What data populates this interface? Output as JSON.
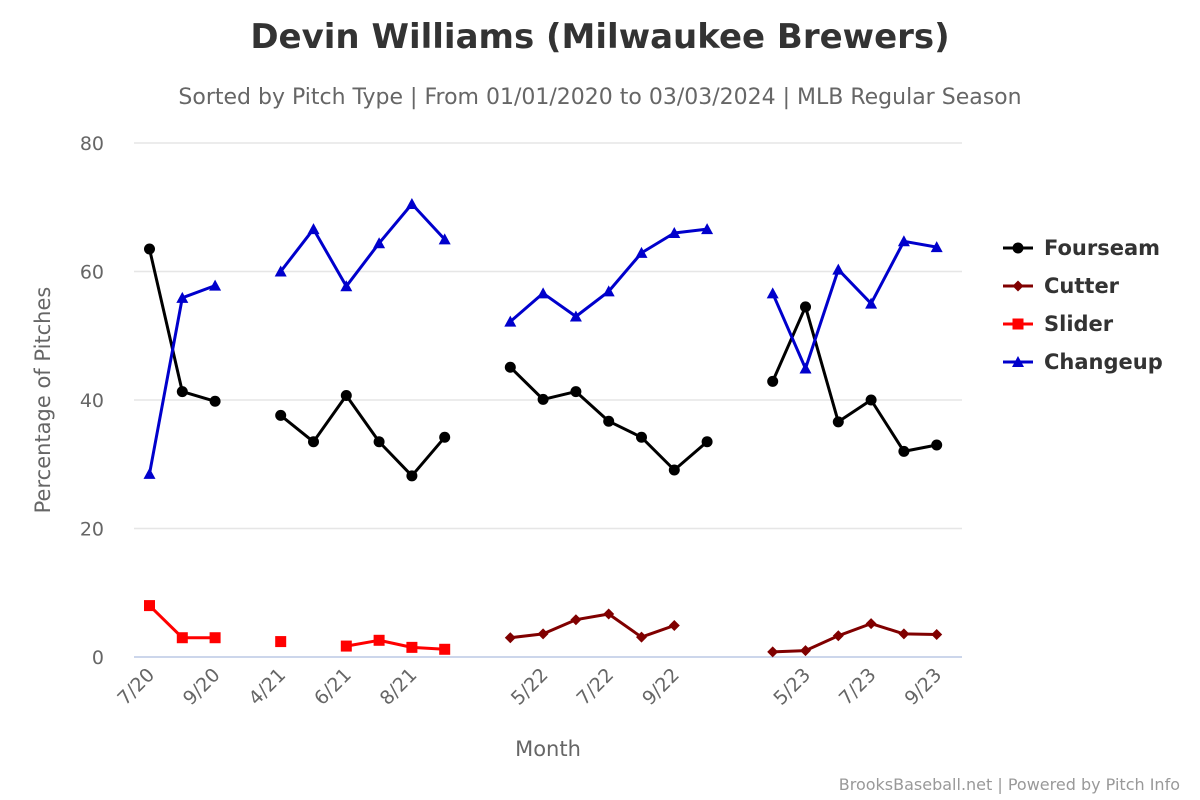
{
  "chart_data": {
    "type": "line",
    "title": "Devin Williams (Milwaukee Brewers)",
    "subtitle": "Sorted by Pitch Type | From 01/01/2020 to 03/03/2024 | MLB Regular Season",
    "xlabel": "Month",
    "ylabel": "Percentage of Pitches",
    "ylim": [
      0,
      80
    ],
    "yticks": [
      0,
      20,
      40,
      60,
      80
    ],
    "categories": [
      "7/20",
      "8/20",
      "9/20",
      "3/21",
      "4/21",
      "5/21",
      "6/21",
      "7/21",
      "8/21",
      "9/21",
      "3/22",
      "4/22",
      "5/22",
      "6/22",
      "7/22",
      "8/22",
      "9/22",
      "10/22",
      "3/23",
      "4/23",
      "5/23",
      "6/23",
      "7/23",
      "8/23",
      "9/23"
    ],
    "xtick_labels": [
      {
        "index": 0,
        "label": "7/20"
      },
      {
        "index": 2,
        "label": "9/20"
      },
      {
        "index": 4,
        "label": "4/21"
      },
      {
        "index": 6,
        "label": "6/21"
      },
      {
        "index": 8,
        "label": "8/21"
      },
      {
        "index": 12,
        "label": "5/22"
      },
      {
        "index": 14,
        "label": "7/22"
      },
      {
        "index": 16,
        "label": "9/22"
      },
      {
        "index": 20,
        "label": "5/23"
      },
      {
        "index": 22,
        "label": "7/23"
      },
      {
        "index": 24,
        "label": "9/23"
      }
    ],
    "series": [
      {
        "name": "Fourseam",
        "color": "#000000",
        "marker": "circle",
        "values": [
          63.5,
          41.3,
          39.8,
          null,
          37.6,
          33.5,
          40.7,
          33.5,
          28.2,
          34.2,
          null,
          45.1,
          40.1,
          41.3,
          36.7,
          34.2,
          29.1,
          33.5,
          null,
          42.9,
          54.5,
          36.6,
          40.0,
          32.0,
          33.0
        ]
      },
      {
        "name": "Cutter",
        "color": "#800000",
        "marker": "diamond",
        "values": [
          null,
          null,
          null,
          null,
          null,
          null,
          null,
          null,
          null,
          null,
          null,
          3.0,
          3.6,
          5.8,
          6.7,
          3.1,
          4.9,
          null,
          null,
          0.8,
          1.0,
          3.3,
          5.2,
          3.6,
          3.5
        ]
      },
      {
        "name": "Slider",
        "color": "#ff0000",
        "marker": "square",
        "values": [
          8.0,
          3.0,
          3.0,
          null,
          2.4,
          null,
          1.7,
          2.6,
          1.5,
          1.2,
          null,
          null,
          null,
          null,
          null,
          null,
          null,
          null,
          null,
          null,
          null,
          null,
          null,
          null,
          null
        ]
      },
      {
        "name": "Changeup",
        "color": "#0000cc",
        "marker": "triangle",
        "values": [
          28.5,
          55.9,
          57.8,
          null,
          60.0,
          66.6,
          57.7,
          64.4,
          70.5,
          65.0,
          null,
          52.2,
          56.6,
          53.0,
          56.9,
          62.9,
          66.0,
          66.6,
          null,
          56.6,
          44.9,
          60.3,
          55.0,
          64.7,
          63.8
        ]
      }
    ]
  },
  "credits": "BrooksBaseball.net | Powered by Pitch Info"
}
